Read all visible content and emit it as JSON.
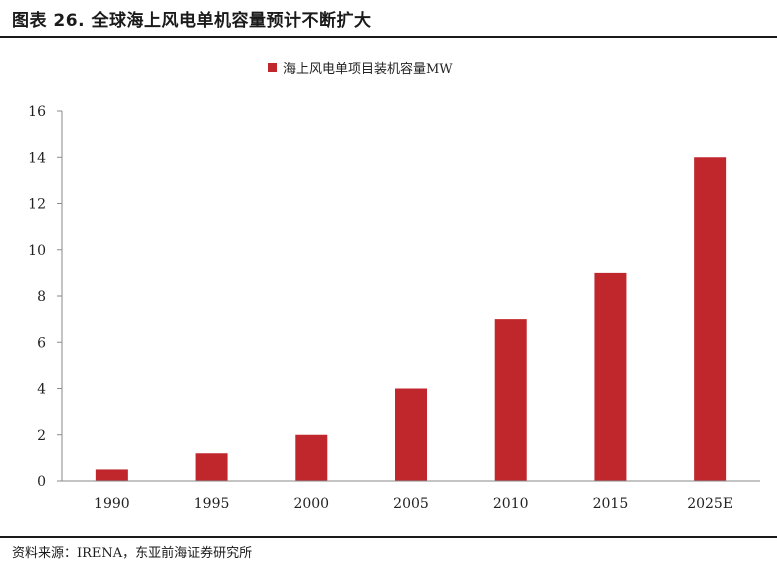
{
  "figure": {
    "title": "图表 26. 全球海上风电单机容量预计不断扩大",
    "source": "资料来源：IRENA，东亚前海证券研究所"
  },
  "chart_data": {
    "type": "bar",
    "categories": [
      "1990",
      "1995",
      "2000",
      "2005",
      "2010",
      "2015",
      "2025E"
    ],
    "series": [
      {
        "name": "海上风电单项目装机容量MW",
        "values": [
          0.5,
          1.2,
          2,
          4,
          7,
          9,
          14
        ],
        "color": "#C0272D"
      }
    ],
    "ylim": [
      0,
      16
    ],
    "yticks": [
      0,
      2,
      4,
      6,
      8,
      10,
      12,
      14,
      16
    ],
    "grid": false,
    "legend_position": "top-center",
    "xlabel": "",
    "ylabel": ""
  }
}
